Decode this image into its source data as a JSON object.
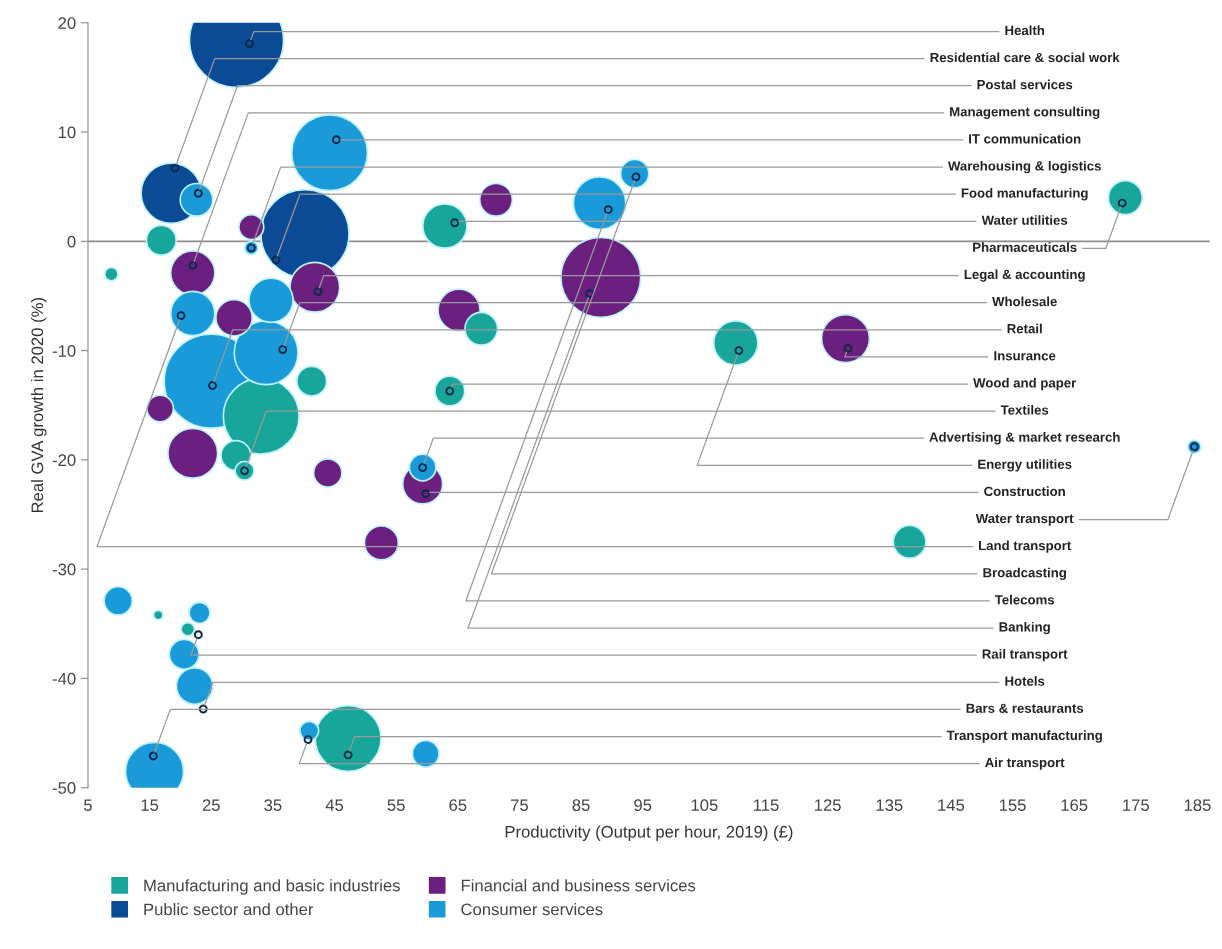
{
  "chart_data": {
    "type": "bubble",
    "relative": false,
    "xlabel": "Productivity (Output per hour, 2019) (£)",
    "ylabel": "Real GVA growth in 2020 (%)",
    "xlim": [
      5,
      187
    ],
    "ylim": [
      -50,
      20
    ],
    "xticks": [
      5,
      15,
      25,
      35,
      45,
      55,
      65,
      75,
      85,
      95,
      105,
      115,
      125,
      135,
      145,
      155,
      165,
      175,
      185
    ],
    "yticks": [
      -50,
      -40,
      -30,
      -20,
      -10,
      0,
      10,
      20
    ],
    "grid": false,
    "legend": "bottom",
    "ref_lines": [
      {
        "axis": "y",
        "value": 0,
        "color": "#8c8c8c"
      }
    ],
    "series": [
      {
        "name": "Manufacturing and basic industries",
        "color": "#18a59a",
        "x": [
          16.9,
          62.9,
          41.3,
          68.8,
          63.7,
          110.1,
          173.3,
          138.3,
          33.1,
          29.0,
          30.4,
          47.2,
          16.4,
          21.2,
          8.8
        ],
        "values": [
          0.1,
          1.4,
          -12.8,
          -8.0,
          -13.7,
          -9.3,
          4.0,
          -27.5,
          -16.0,
          -19.6,
          -21.0,
          -45.5,
          -34.2,
          -35.5,
          -3.0
        ],
        "sizes": [
          0.1,
          0.22,
          0.1,
          0.12,
          0.1,
          0.22,
          0.13,
          0.12,
          0.65,
          0.1,
          0.04,
          0.49,
          0.01,
          0.02,
          0.02
        ]
      },
      {
        "name": "Public sector and other",
        "color": "#0b4a94",
        "x": [
          29.1,
          18.5,
          40.2
        ],
        "values": [
          18.4,
          4.4,
          0.7
        ],
        "sizes": [
          1,
          0.41,
          0.88
        ]
      },
      {
        "name": "Financial and business services",
        "color": "#6b1f7f",
        "x": [
          31.5,
          22.0,
          41.8,
          28.7,
          71.2,
          65.2,
          88.2,
          127.9,
          16.7,
          22.0,
          43.9,
          59.3,
          52.6
        ],
        "values": [
          1.3,
          -2.9,
          -4.2,
          -7.0,
          3.8,
          -6.3,
          -3.3,
          -8.9,
          -15.3,
          -19.4,
          -21.2,
          -22.2,
          -27.6
        ],
        "sizes": [
          0.07,
          0.22,
          0.28,
          0.15,
          0.12,
          0.2,
          0.72,
          0.26,
          0.08,
          0.28,
          0.09,
          0.18,
          0.13
        ]
      },
      {
        "name": "Consumer services",
        "color": "#1a9ad8",
        "x": [
          22.6,
          44.2,
          31.5,
          22.0,
          34.7,
          25.0,
          33.9,
          59.3,
          9.9,
          23.1,
          20.6,
          22.3,
          15.8,
          40.9,
          59.8,
          93.7,
          88.0,
          184.5
        ],
        "values": [
          3.8,
          8.1,
          -0.6,
          -6.6,
          -5.4,
          -12.8,
          -10.2,
          -20.7,
          -32.9,
          -34.0,
          -37.8,
          -40.7,
          -48.5,
          -44.8,
          -46.9,
          6.2,
          3.5,
          -18.8
        ],
        "sizes": [
          0.12,
          0.65,
          0.02,
          0.22,
          0.22,
          1,
          0.46,
          0.08,
          0.09,
          0.05,
          0.1,
          0.15,
          0.38,
          0.04,
          0.08,
          0.09,
          0.31,
          0.02
        ]
      }
    ],
    "annotations": [
      {
        "text": "Health",
        "x": 31.2,
        "y": 18.1
      },
      {
        "text": "Residential care & social work",
        "x": 19.1,
        "y": 6.7
      },
      {
        "text": "Postal services",
        "x": 22.9,
        "y": 4.4
      },
      {
        "text": "Management consulting",
        "x": 22.0,
        "y": -2.2
      },
      {
        "text": "IT communication",
        "x": 45.3,
        "y": 9.3
      },
      {
        "text": "Warehousing & logistics",
        "x": 31.5,
        "y": -0.6
      },
      {
        "text": "Food manufacturing",
        "x": 35.5,
        "y": -1.7
      },
      {
        "text": "Water utilities",
        "x": 64.5,
        "y": 1.7
      },
      {
        "text": "Pharmaceuticals",
        "x": 172.8,
        "y": 3.5
      },
      {
        "text": "Legal & accounting",
        "x": 42.3,
        "y": -4.6
      },
      {
        "text": "Wholesale",
        "x": 36.6,
        "y": -9.9
      },
      {
        "text": "Retail",
        "x": 25.2,
        "y": -13.2
      },
      {
        "text": "Insurance",
        "x": 128.3,
        "y": -9.8
      },
      {
        "text": "Wood and paper",
        "x": 63.7,
        "y": -13.7
      },
      {
        "text": "Textiles",
        "x": 30.4,
        "y": -21.0
      },
      {
        "text": "Advertising & market research",
        "x": 59.3,
        "y": -20.7
      },
      {
        "text": "Energy utilities",
        "x": 110.6,
        "y": -10.0
      },
      {
        "text": "Construction",
        "x": 59.8,
        "y": -23.1
      },
      {
        "text": "Water transport",
        "x": 184.5,
        "y": -18.8
      },
      {
        "text": "Land transport",
        "x": 20.1,
        "y": -6.8
      },
      {
        "text": "Broadcasting",
        "x": 93.9,
        "y": 5.9
      },
      {
        "text": "Telecoms",
        "x": 89.4,
        "y": 2.9
      },
      {
        "text": "Banking",
        "x": 86.4,
        "y": -4.8
      },
      {
        "text": "Rail transport",
        "x": 22.9,
        "y": -36.0
      },
      {
        "text": "Hotels",
        "x": 23.7,
        "y": -42.8
      },
      {
        "text": "Bars & restaurants",
        "x": 15.6,
        "y": -47.1
      },
      {
        "text": "Transport manufacturing",
        "x": 47.2,
        "y": -47.0
      },
      {
        "text": "Air transport",
        "x": 40.7,
        "y": -45.6
      }
    ]
  }
}
